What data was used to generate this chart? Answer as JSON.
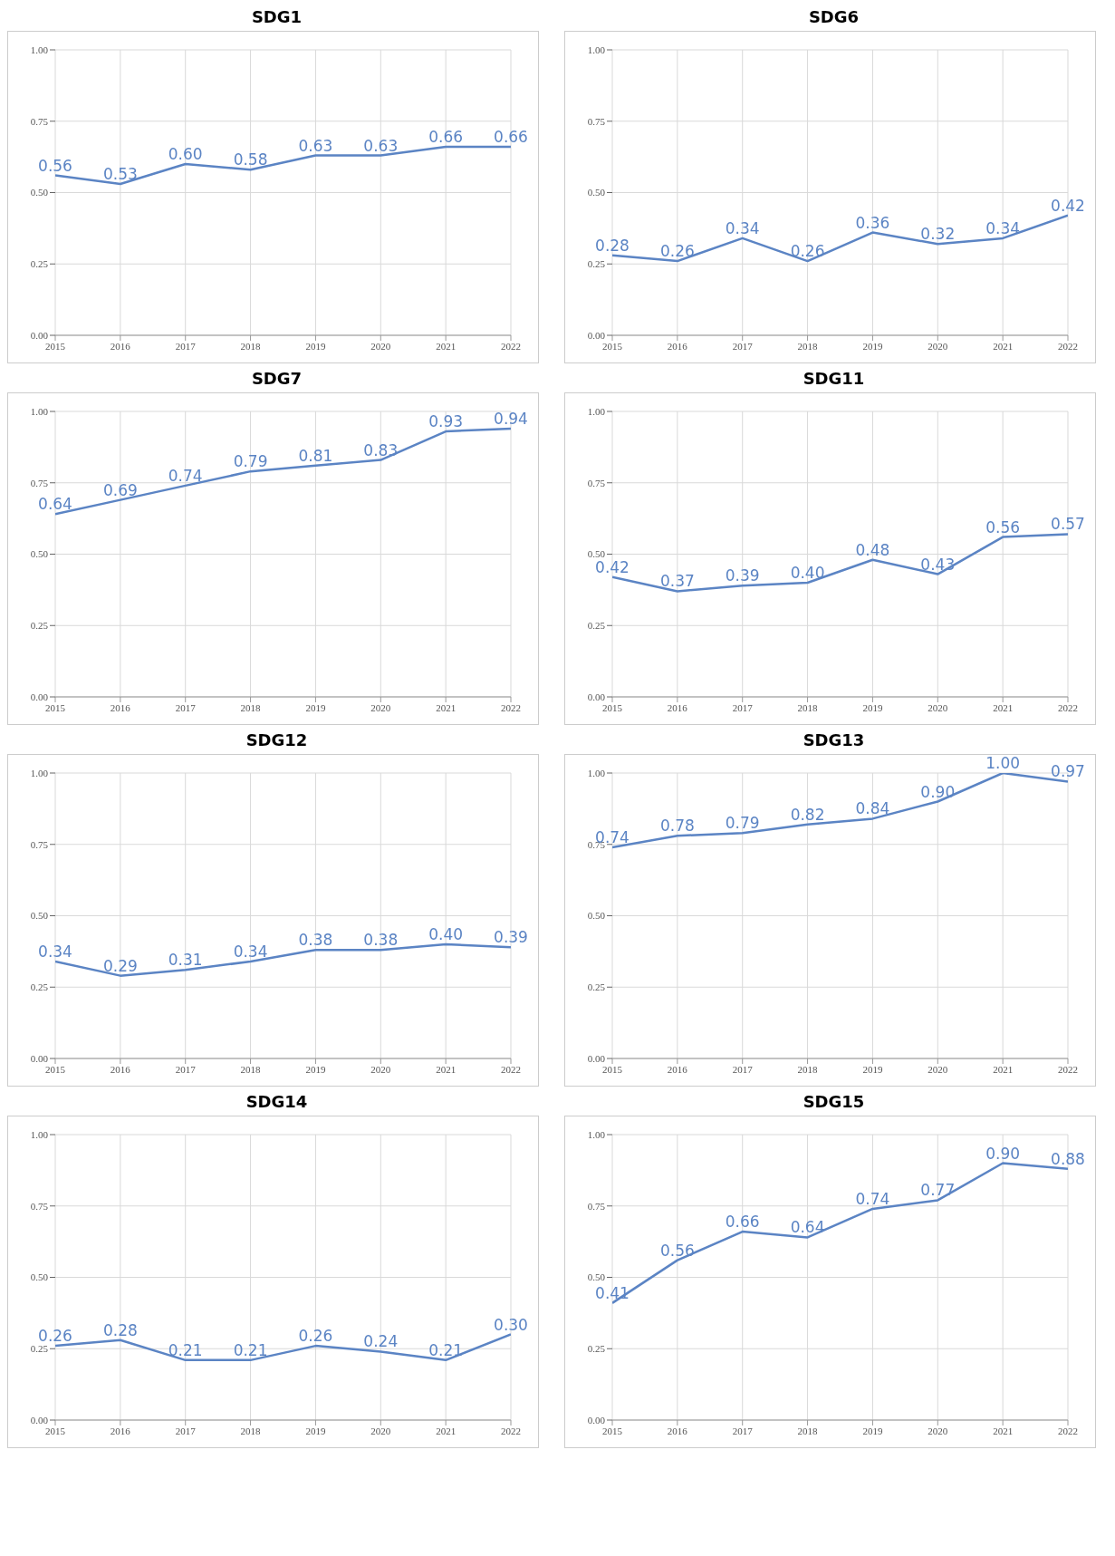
{
  "chart_data": [
    {
      "type": "line",
      "title": "SDG1",
      "x": [
        2015,
        2016,
        2017,
        2018,
        2019,
        2020,
        2021,
        2022
      ],
      "xlim": [
        2015,
        2022
      ],
      "xticks": [
        2015,
        2016,
        2017,
        2018,
        2019,
        2020,
        2021,
        2022
      ],
      "ylim": [
        0,
        1
      ],
      "yticks": [
        {
          "value": 0,
          "label": "0.00"
        },
        {
          "value": 0.25,
          "label": "0.25"
        },
        {
          "value": 0.5,
          "label": "0.50"
        },
        {
          "value": 0.75,
          "label": "0.75"
        },
        {
          "value": 1,
          "label": "1.00"
        }
      ],
      "grid": true,
      "color": "#5b84c4",
      "values": [
        0.56,
        0.53,
        0.6,
        0.58,
        0.63,
        0.63,
        0.66,
        0.66
      ],
      "value_labels": [
        "0.56",
        "0.53",
        "0.60",
        "0.58",
        "0.63",
        "0.63",
        "0.66",
        "0.66"
      ]
    },
    {
      "type": "line",
      "title": "SDG6",
      "x": [
        2015,
        2016,
        2017,
        2018,
        2019,
        2020,
        2021,
        2022
      ],
      "xlim": [
        2015,
        2022
      ],
      "xticks": [
        2015,
        2016,
        2017,
        2018,
        2019,
        2020,
        2021,
        2022
      ],
      "ylim": [
        0,
        1
      ],
      "yticks": [
        {
          "value": 0,
          "label": "0.00"
        },
        {
          "value": 0.25,
          "label": "0.25"
        },
        {
          "value": 0.5,
          "label": "0.50"
        },
        {
          "value": 0.75,
          "label": "0.75"
        },
        {
          "value": 1,
          "label": "1.00"
        }
      ],
      "grid": true,
      "color": "#5b84c4",
      "values": [
        0.28,
        0.26,
        0.34,
        0.26,
        0.36,
        0.32,
        0.34,
        0.42
      ],
      "value_labels": [
        "0.28",
        "0.26",
        "0.34",
        "0.26",
        "0.36",
        "0.32",
        "0.34",
        "0.42"
      ]
    },
    {
      "type": "line",
      "title": "SDG7",
      "x": [
        2015,
        2016,
        2017,
        2018,
        2019,
        2020,
        2021,
        2022
      ],
      "xlim": [
        2015,
        2022
      ],
      "xticks": [
        2015,
        2016,
        2017,
        2018,
        2019,
        2020,
        2021,
        2022
      ],
      "ylim": [
        0,
        1
      ],
      "yticks": [
        {
          "value": 0,
          "label": "0.00"
        },
        {
          "value": 0.25,
          "label": "0.25"
        },
        {
          "value": 0.5,
          "label": "0.50"
        },
        {
          "value": 0.75,
          "label": "0.75"
        },
        {
          "value": 1,
          "label": "1.00"
        }
      ],
      "grid": true,
      "color": "#5b84c4",
      "values": [
        0.64,
        0.69,
        0.74,
        0.79,
        0.81,
        0.83,
        0.93,
        0.94
      ],
      "value_labels": [
        "0.64",
        "0.69",
        "0.74",
        "0.79",
        "0.81",
        "0.83",
        "0.93",
        "0.94"
      ]
    },
    {
      "type": "line",
      "title": "SDG11",
      "x": [
        2015,
        2016,
        2017,
        2018,
        2019,
        2020,
        2021,
        2022
      ],
      "xlim": [
        2015,
        2022
      ],
      "xticks": [
        2015,
        2016,
        2017,
        2018,
        2019,
        2020,
        2021,
        2022
      ],
      "ylim": [
        0,
        1
      ],
      "yticks": [
        {
          "value": 0,
          "label": "0.00"
        },
        {
          "value": 0.25,
          "label": "0.25"
        },
        {
          "value": 0.5,
          "label": "0.50"
        },
        {
          "value": 0.75,
          "label": "0.75"
        },
        {
          "value": 1,
          "label": "1.00"
        }
      ],
      "grid": true,
      "color": "#5b84c4",
      "values": [
        0.42,
        0.37,
        0.39,
        0.4,
        0.48,
        0.43,
        0.56,
        0.57
      ],
      "value_labels": [
        "0.42",
        "0.37",
        "0.39",
        "0.40",
        "0.48",
        "0.43",
        "0.56",
        "0.57"
      ]
    },
    {
      "type": "line",
      "title": "SDG12",
      "x": [
        2015,
        2016,
        2017,
        2018,
        2019,
        2020,
        2021,
        2022
      ],
      "xlim": [
        2015,
        2022
      ],
      "xticks": [
        2015,
        2016,
        2017,
        2018,
        2019,
        2020,
        2021,
        2022
      ],
      "ylim": [
        0,
        1
      ],
      "yticks": [
        {
          "value": 0,
          "label": "0.00"
        },
        {
          "value": 0.25,
          "label": "0.25"
        },
        {
          "value": 0.5,
          "label": "0.50"
        },
        {
          "value": 0.75,
          "label": "0.75"
        },
        {
          "value": 1,
          "label": "1.00"
        }
      ],
      "grid": true,
      "color": "#5b84c4",
      "values": [
        0.34,
        0.29,
        0.31,
        0.34,
        0.38,
        0.38,
        0.4,
        0.39
      ],
      "value_labels": [
        "0.34",
        "0.29",
        "0.31",
        "0.34",
        "0.38",
        "0.38",
        "0.40",
        "0.39"
      ]
    },
    {
      "type": "line",
      "title": "SDG13",
      "x": [
        2015,
        2016,
        2017,
        2018,
        2019,
        2020,
        2021,
        2022
      ],
      "xlim": [
        2015,
        2022
      ],
      "xticks": [
        2015,
        2016,
        2017,
        2018,
        2019,
        2020,
        2021,
        2022
      ],
      "ylim": [
        0,
        1
      ],
      "yticks": [
        {
          "value": 0,
          "label": "0.00"
        },
        {
          "value": 0.25,
          "label": "0.25"
        },
        {
          "value": 0.5,
          "label": "0.50"
        },
        {
          "value": 0.75,
          "label": "0.75"
        },
        {
          "value": 1,
          "label": "1.00"
        }
      ],
      "grid": true,
      "color": "#5b84c4",
      "values": [
        0.74,
        0.78,
        0.79,
        0.82,
        0.84,
        0.9,
        1.0,
        0.97
      ],
      "value_labels": [
        "0.74",
        "0.78",
        "0.79",
        "0.82",
        "0.84",
        "0.90",
        "1.00",
        "0.97"
      ]
    },
    {
      "type": "line",
      "title": "SDG14",
      "x": [
        2015,
        2016,
        2017,
        2018,
        2019,
        2020,
        2021,
        2022
      ],
      "xlim": [
        2015,
        2022
      ],
      "xticks": [
        2015,
        2016,
        2017,
        2018,
        2019,
        2020,
        2021,
        2022
      ],
      "ylim": [
        0,
        1
      ],
      "yticks": [
        {
          "value": 0,
          "label": "0.00"
        },
        {
          "value": 0.25,
          "label": "0.25"
        },
        {
          "value": 0.5,
          "label": "0.50"
        },
        {
          "value": 0.75,
          "label": "0.75"
        },
        {
          "value": 1,
          "label": "1.00"
        }
      ],
      "grid": true,
      "color": "#5b84c4",
      "values": [
        0.26,
        0.28,
        0.21,
        0.21,
        0.26,
        0.24,
        0.21,
        0.3
      ],
      "value_labels": [
        "0.26",
        "0.28",
        "0.21",
        "0.21",
        "0.26",
        "0.24",
        "0.21",
        "0.30"
      ]
    },
    {
      "type": "line",
      "title": "SDG15",
      "x": [
        2015,
        2016,
        2017,
        2018,
        2019,
        2020,
        2021,
        2022
      ],
      "xlim": [
        2015,
        2022
      ],
      "xticks": [
        2015,
        2016,
        2017,
        2018,
        2019,
        2020,
        2021,
        2022
      ],
      "ylim": [
        0,
        1
      ],
      "yticks": [
        {
          "value": 0,
          "label": "0.00"
        },
        {
          "value": 0.25,
          "label": "0.25"
        },
        {
          "value": 0.5,
          "label": "0.50"
        },
        {
          "value": 0.75,
          "label": "0.75"
        },
        {
          "value": 1,
          "label": "1.00"
        }
      ],
      "grid": true,
      "color": "#5b84c4",
      "values": [
        0.41,
        0.56,
        0.66,
        0.64,
        0.74,
        0.77,
        0.9,
        0.88
      ],
      "value_labels": [
        "0.41",
        "0.56",
        "0.66",
        "0.64",
        "0.74",
        "0.77",
        "0.90",
        "0.88"
      ]
    }
  ]
}
